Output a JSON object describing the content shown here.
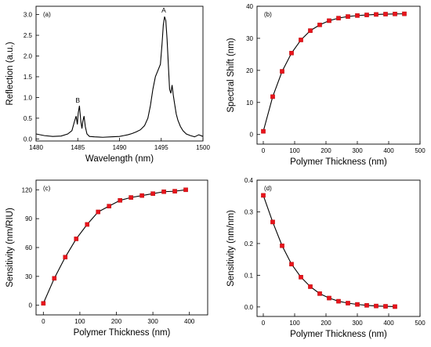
{
  "chart_data": [
    {
      "type": "line",
      "panel_label": "(a)",
      "xlabel": "Wavelength (nm)",
      "ylabel": "Reflection (a.u.)",
      "xlim": [
        1480,
        1500
      ],
      "ylim": [
        -0.05,
        3.2
      ],
      "xticks": [
        1480,
        1485,
        1490,
        1495,
        1500
      ],
      "yticks": [
        0.0,
        0.5,
        1.0,
        1.5,
        2.0,
        2.5,
        3.0
      ],
      "tick_decimals": 1,
      "markers": false,
      "annotations": [
        {
          "text": "A",
          "x": 1495.3,
          "y": 3.05
        },
        {
          "text": "B",
          "x": 1485.0,
          "y": 0.88
        }
      ],
      "x": [
        1480.0,
        1481.0,
        1482.0,
        1483.0,
        1483.8,
        1484.3,
        1484.6,
        1484.8,
        1484.95,
        1485.05,
        1485.2,
        1485.35,
        1485.5,
        1485.6,
        1485.75,
        1485.9,
        1486.1,
        1486.4,
        1487.0,
        1488.0,
        1489.0,
        1490.0,
        1490.5,
        1491.0,
        1491.5,
        1492.0,
        1492.5,
        1493.0,
        1493.4,
        1493.7,
        1494.0,
        1494.3,
        1494.6,
        1494.9,
        1495.1,
        1495.25,
        1495.4,
        1495.55,
        1495.7,
        1495.85,
        1496.0,
        1496.15,
        1496.3,
        1496.45,
        1496.6,
        1496.8,
        1497.0,
        1497.3,
        1497.6,
        1498.0,
        1498.5,
        1499.0,
        1499.5,
        1500.0
      ],
      "y": [
        0.12,
        0.08,
        0.06,
        0.07,
        0.12,
        0.2,
        0.42,
        0.55,
        0.35,
        0.62,
        0.8,
        0.45,
        0.25,
        0.42,
        0.55,
        0.3,
        0.12,
        0.06,
        0.05,
        0.04,
        0.05,
        0.06,
        0.08,
        0.1,
        0.13,
        0.17,
        0.22,
        0.32,
        0.5,
        0.8,
        1.2,
        1.5,
        1.65,
        1.8,
        2.3,
        2.75,
        2.95,
        2.85,
        2.4,
        1.8,
        1.2,
        1.1,
        1.3,
        1.05,
        0.85,
        0.6,
        0.45,
        0.3,
        0.2,
        0.12,
        0.08,
        0.05,
        0.1,
        0.06
      ]
    },
    {
      "type": "line",
      "panel_label": "(b)",
      "xlabel": "Polymer Thickness (nm)",
      "ylabel": "Spectral Shift (nm)",
      "xlim": [
        -20,
        500
      ],
      "ylim": [
        -3,
        40
      ],
      "xticks": [
        0,
        100,
        200,
        300,
        400,
        500
      ],
      "yticks": [
        0,
        10,
        20,
        30,
        40
      ],
      "tick_decimals": 0,
      "markers": true,
      "x": [
        0,
        30,
        60,
        90,
        120,
        150,
        180,
        210,
        240,
        270,
        300,
        330,
        360,
        390,
        420,
        450
      ],
      "y": [
        1.0,
        11.8,
        19.7,
        25.4,
        29.5,
        32.4,
        34.2,
        35.5,
        36.3,
        36.8,
        37.1,
        37.3,
        37.45,
        37.55,
        37.6,
        37.65
      ]
    },
    {
      "type": "line",
      "panel_label": "(c)",
      "xlabel": "Polymer Thickness (nm)",
      "ylabel": "Sensitivity (nm/RIU)",
      "xlim": [
        -20,
        450
      ],
      "ylim": [
        -10,
        130
      ],
      "xticks": [
        0,
        100,
        200,
        300,
        400
      ],
      "yticks": [
        0,
        30,
        60,
        90,
        120
      ],
      "tick_decimals": 0,
      "markers": true,
      "x": [
        0,
        30,
        60,
        90,
        120,
        150,
        180,
        210,
        240,
        270,
        300,
        330,
        360,
        390
      ],
      "y": [
        2,
        28,
        50,
        69,
        84,
        97,
        103,
        109,
        112,
        114,
        116,
        118,
        118.5,
        120
      ]
    },
    {
      "type": "line",
      "panel_label": "(d)",
      "xlabel": "Polymer Thickness (nm)",
      "ylabel": "Sensitivity (nm/nm)",
      "xlim": [
        -20,
        500
      ],
      "ylim": [
        -0.03,
        0.4
      ],
      "xticks": [
        0,
        100,
        200,
        300,
        400,
        500
      ],
      "yticks": [
        0.0,
        0.1,
        0.2,
        0.3,
        0.4
      ],
      "tick_decimals": 1,
      "markers": true,
      "x": [
        0,
        30,
        60,
        90,
        120,
        150,
        180,
        210,
        240,
        270,
        300,
        330,
        360,
        390,
        420
      ],
      "y": [
        0.352,
        0.268,
        0.193,
        0.135,
        0.094,
        0.064,
        0.042,
        0.028,
        0.018,
        0.012,
        0.008,
        0.005,
        0.003,
        0.002,
        0.001
      ]
    }
  ]
}
